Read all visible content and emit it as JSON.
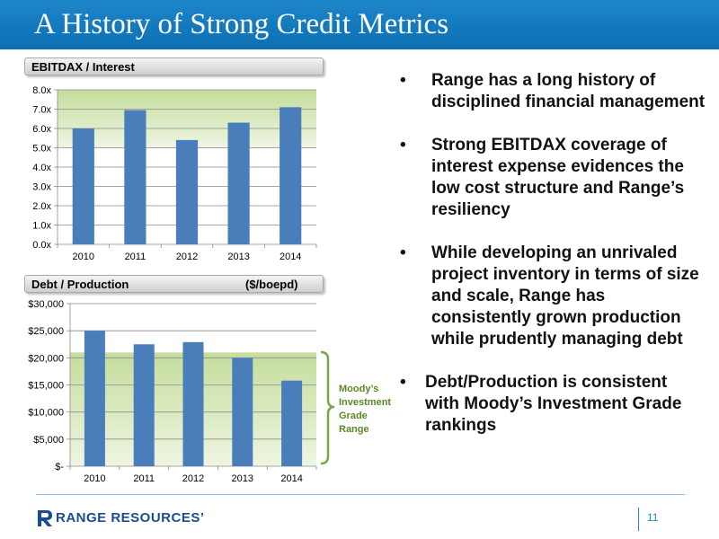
{
  "slide": {
    "title": "A History of Strong Credit Metrics",
    "page_number": "11"
  },
  "chart1_header": {
    "left": "EBITDAX / Interest"
  },
  "chart2_header": {
    "left": "Debt / Production",
    "right": "($/boepd)"
  },
  "moody_label": [
    "Moody’s",
    "Investment",
    "Grade",
    "Range"
  ],
  "bullets": [
    "Range has a long history of disciplined financial management",
    "Strong EBITDAX coverage of interest expense evidences the low cost structure and Range’s resiliency",
    "While developing an unrivaled project inventory in terms of size and scale, Range has consistently grown production while prudently managing debt",
    "Debt/Production is consistent with Moody’s Investment Grade rankings"
  ],
  "bullet_symbol": "•",
  "logo": {
    "text": "RANGE RESOURCES’",
    "color": "#1a4d8f"
  },
  "colors": {
    "title_bar": "#1178bd",
    "bar": "#4a7ebb",
    "green_band": "#5a8a22"
  },
  "chart_data": [
    {
      "type": "bar",
      "title": "EBITDAX / Interest",
      "categories": [
        "2010",
        "2011",
        "2012",
        "2013",
        "2014"
      ],
      "values": [
        6.0,
        6.95,
        5.4,
        6.3,
        7.1
      ],
      "ylim": [
        0,
        8
      ],
      "yticks": [
        "0.0x",
        "1.0x",
        "2.0x",
        "3.0x",
        "4.0x",
        "5.0x",
        "6.0x",
        "7.0x",
        "8.0x"
      ],
      "highlight_band": [
        5,
        8
      ],
      "grid": true
    },
    {
      "type": "bar",
      "title": "Debt / Production",
      "unit": "($/boepd)",
      "categories": [
        "2010",
        "2011",
        "2012",
        "2013",
        "2014"
      ],
      "values": [
        25000,
        22500,
        22900,
        20000,
        15800
      ],
      "ylim": [
        0,
        30000
      ],
      "yticks": [
        "$-",
        "$5,000",
        "$10,000",
        "$15,000",
        "$20,000",
        "$25,000",
        "$30,000"
      ],
      "highlight_band": [
        0,
        21000
      ],
      "grid": true
    }
  ]
}
